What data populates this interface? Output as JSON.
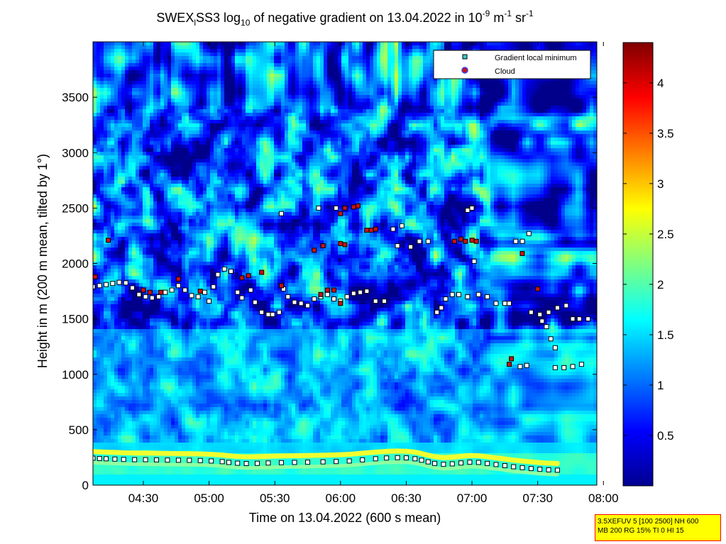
{
  "chart_data": {
    "type": "heatmap",
    "title": {
      "prefix": "SWEX",
      "sub": "l",
      "mid": "SS3 log",
      "sub2": "10",
      "rest": " of negative gradient on 13.04.2022 in 10",
      "sup1": "-9",
      "unit1": " m",
      "sup2": "-1",
      "unit2": " sr",
      "sup3": "-1"
    },
    "xlabel": "Time on 13.04.2022 (600 s mean)",
    "ylabel": "Height in m (200 m mean, tilted by 1°)",
    "x_ticks": [
      "04:30",
      "05:00",
      "05:30",
      "06:00",
      "06:30",
      "07:00",
      "07:30",
      "08:00"
    ],
    "x_tick_minutes": [
      270,
      300,
      330,
      360,
      390,
      420,
      450,
      480
    ],
    "xlim_minutes": [
      247,
      477
    ],
    "y_ticks": [
      0,
      500,
      1000,
      1500,
      2000,
      2500,
      3000,
      3500
    ],
    "ylim": [
      0,
      4000
    ],
    "colorbar_ticks": [
      "0.5",
      "1",
      "1.5",
      "2",
      "2.5",
      "3",
      "3.5",
      "4"
    ],
    "colorbar_tick_values": [
      0.5,
      1,
      1.5,
      2,
      2.5,
      3,
      3.5,
      4
    ],
    "colorbar_range": [
      0,
      4.4
    ],
    "colormap": "jet",
    "legend": {
      "position": "top-right",
      "entries": [
        {
          "label": "Gradient local minimum",
          "color": "#33cccc",
          "marker": "square"
        },
        {
          "label": "Cloud",
          "color": "#cc1111",
          "edge": "#3344ff",
          "marker": "circle"
        }
      ]
    },
    "series": [
      {
        "name": "Gradient local minimum",
        "points": [
          [
            247,
            243
          ],
          [
            250,
            240
          ],
          [
            253,
            238
          ],
          [
            257,
            235
          ],
          [
            261,
            232
          ],
          [
            266,
            230
          ],
          [
            271,
            230
          ],
          [
            276,
            228
          ],
          [
            281,
            226
          ],
          [
            286,
            225
          ],
          [
            291,
            224
          ],
          [
            296,
            222
          ],
          [
            301,
            218
          ],
          [
            306,
            212
          ],
          [
            309,
            205
          ],
          [
            313,
            198
          ],
          [
            317,
            195
          ],
          [
            322,
            197
          ],
          [
            327,
            200
          ],
          [
            333,
            203
          ],
          [
            339,
            205
          ],
          [
            345,
            207
          ],
          [
            352,
            210
          ],
          [
            358,
            213
          ],
          [
            364,
            218
          ],
          [
            370,
            228
          ],
          [
            376,
            238
          ],
          [
            381,
            245
          ],
          [
            386,
            248
          ],
          [
            390,
            246
          ],
          [
            394,
            238
          ],
          [
            397,
            225
          ],
          [
            400,
            210
          ],
          [
            403,
            196
          ],
          [
            407,
            188
          ],
          [
            411,
            192
          ],
          [
            415,
            200
          ],
          [
            419,
            207
          ],
          [
            423,
            205
          ],
          [
            427,
            196
          ],
          [
            431,
            186
          ],
          [
            435,
            176
          ],
          [
            439,
            166
          ],
          [
            443,
            158
          ],
          [
            447,
            150
          ],
          [
            451,
            143
          ],
          [
            455,
            138
          ],
          [
            459,
            135
          ],
          [
            247,
            1790
          ],
          [
            250,
            1800
          ],
          [
            253,
            1810
          ],
          [
            256,
            1820
          ],
          [
            259,
            1830
          ],
          [
            262,
            1825
          ],
          [
            265,
            1780
          ],
          [
            268,
            1720
          ],
          [
            271,
            1700
          ],
          [
            274,
            1690
          ],
          [
            277,
            1700
          ],
          [
            280,
            1740
          ],
          [
            283,
            1760
          ],
          [
            286,
            1800
          ],
          [
            289,
            1760
          ],
          [
            292,
            1710
          ],
          [
            295,
            1700
          ],
          [
            298,
            1740
          ],
          [
            300,
            1660
          ],
          [
            302,
            1790
          ],
          [
            304,
            1900
          ],
          [
            307,
            1950
          ],
          [
            310,
            1930
          ],
          [
            313,
            1740
          ],
          [
            315,
            1690
          ],
          [
            319,
            1760
          ],
          [
            321,
            1650
          ],
          [
            324,
            1560
          ],
          [
            327,
            1540
          ],
          [
            329,
            1540
          ],
          [
            332,
            1560
          ],
          [
            334,
            1770
          ],
          [
            336,
            1700
          ],
          [
            339,
            1650
          ],
          [
            342,
            1640
          ],
          [
            345,
            1620
          ],
          [
            348,
            1680
          ],
          [
            351,
            1700
          ],
          [
            354,
            1720
          ],
          [
            357,
            1680
          ],
          [
            360,
            1660
          ],
          [
            363,
            1700
          ],
          [
            366,
            1730
          ],
          [
            369,
            1740
          ],
          [
            372,
            1750
          ],
          [
            376,
            1660
          ],
          [
            380,
            1660
          ],
          [
            384,
            2310
          ],
          [
            388,
            2340
          ],
          [
            392,
            2150
          ],
          [
            396,
            2200
          ],
          [
            400,
            2200
          ],
          [
            404,
            1560
          ],
          [
            406,
            1600
          ],
          [
            408,
            1680
          ],
          [
            411,
            1720
          ],
          [
            414,
            1720
          ],
          [
            418,
            1700
          ],
          [
            421,
            2020
          ],
          [
            423,
            1720
          ],
          [
            427,
            1700
          ],
          [
            431,
            1640
          ],
          [
            435,
            1640
          ],
          [
            437,
            1640
          ],
          [
            440,
            2200
          ],
          [
            443,
            2200
          ],
          [
            447,
            1560
          ],
          [
            451,
            1540
          ],
          [
            455,
            1560
          ],
          [
            459,
            1600
          ],
          [
            463,
            1620
          ],
          [
            466,
            1500
          ],
          [
            469,
            1500
          ],
          [
            473,
            1500
          ],
          [
            333,
            2450
          ],
          [
            350,
            2500
          ],
          [
            358,
            2500
          ],
          [
            386,
            2160
          ],
          [
            418,
            2480
          ],
          [
            420,
            2500
          ],
          [
            446,
            2270
          ],
          [
            452,
            1480
          ],
          [
            454,
            1430
          ],
          [
            456,
            1320
          ],
          [
            458,
            1240
          ],
          [
            458,
            1060
          ],
          [
            462,
            1060
          ],
          [
            466,
            1070
          ],
          [
            470,
            1090
          ],
          [
            442,
            1070
          ],
          [
            445,
            1080
          ]
        ],
        "color": "#ffffff"
      },
      {
        "name": "Cloud",
        "points": [
          [
            254,
            2210
          ],
          [
            248,
            1880
          ],
          [
            270,
            1760
          ],
          [
            273,
            1740
          ],
          [
            278,
            1740
          ],
          [
            286,
            1860
          ],
          [
            296,
            1750
          ],
          [
            315,
            1870
          ],
          [
            318,
            1890
          ],
          [
            324,
            1920
          ],
          [
            333,
            1800
          ],
          [
            351,
            1720
          ],
          [
            354,
            1760
          ],
          [
            357,
            1760
          ],
          [
            360,
            1640
          ],
          [
            348,
            2120
          ],
          [
            352,
            2160
          ],
          [
            360,
            2180
          ],
          [
            362,
            2170
          ],
          [
            360,
            2450
          ],
          [
            362,
            2500
          ],
          [
            366,
            2510
          ],
          [
            368,
            2520
          ],
          [
            372,
            2300
          ],
          [
            374,
            2300
          ],
          [
            376,
            2310
          ],
          [
            412,
            2200
          ],
          [
            415,
            2220
          ],
          [
            417,
            2200
          ],
          [
            420,
            2210
          ],
          [
            422,
            2200
          ],
          [
            437,
            1090
          ],
          [
            438,
            1140
          ],
          [
            443,
            2090
          ],
          [
            450,
            1770
          ]
        ],
        "color": "#cc1111"
      }
    ]
  },
  "info_box": {
    "line1": "3.5XEFUV 5 [100 2500] NH 600",
    "line2": "MB 200 RG 15% TI 0 HI 15"
  }
}
